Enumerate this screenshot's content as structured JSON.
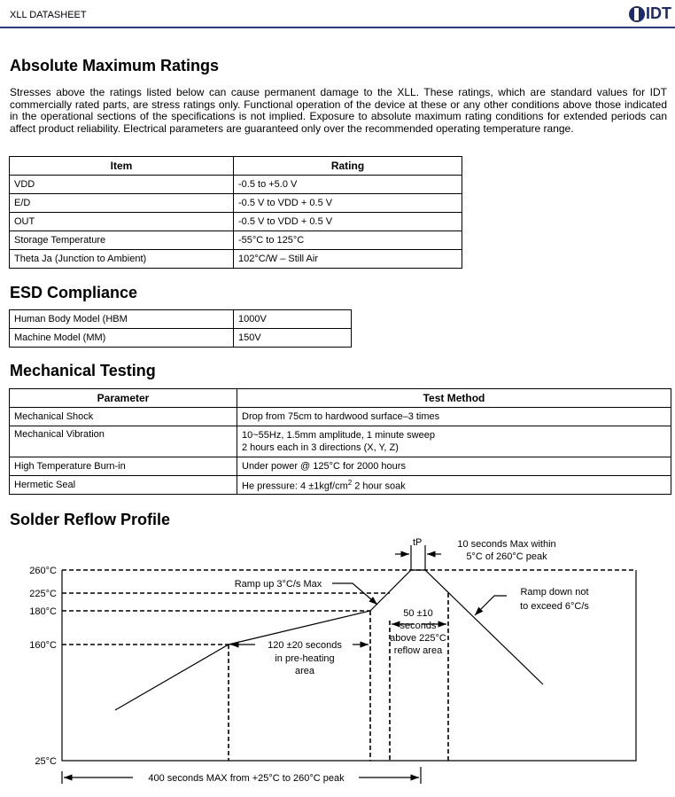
{
  "header": {
    "title": "XLL DATASHEET",
    "logo": "IDT"
  },
  "abs_max": {
    "title": "Absolute Maximum Ratings",
    "intro": "Stresses above the ratings listed below can cause permanent damage to the XLL. These ratings, which are standard values for IDT commercially rated parts, are stress ratings only. Functional operation of the device at these or any other conditions above those indicated in the operational sections of the specifications is not implied. Exposure to absolute maximum rating conditions for extended periods can affect product reliability. Electrical parameters are guaranteed only over the recommended operating temperature range.",
    "headers": [
      "Item",
      "Rating"
    ],
    "rows": [
      [
        "VDD",
        "-0.5 to +5.0 V"
      ],
      [
        "E/D",
        "-0.5 V to VDD + 0.5 V"
      ],
      [
        "OUT",
        "-0.5 V to VDD + 0.5 V"
      ],
      [
        "Storage Temperature",
        "-55°C to 125°C"
      ],
      [
        "Theta Ja (Junction to Ambient)",
        "102°C/W – Still Air"
      ]
    ]
  },
  "esd": {
    "title": "ESD Compliance",
    "rows": [
      [
        "Human Body Model (HBM",
        "1000V"
      ],
      [
        "Machine Model (MM)",
        "150V"
      ]
    ]
  },
  "mech": {
    "title": "Mechanical Testing",
    "headers": [
      "Parameter",
      "Test Method"
    ],
    "rows": [
      [
        "Mechanical Shock",
        "Drop from 75cm to hardwood surface–3 times"
      ],
      [
        "Mechanical Vibration",
        "10~55Hz, 1.5mm amplitude, 1 minute sweep",
        "2 hours each in 3 directions (X, Y, Z)"
      ],
      [
        "High Temperature Burn-in",
        "Under power @ 125°C for 2000 hours"
      ],
      [
        "Hermetic Seal",
        "He pressure: 4 ±1kgf/cm",
        "2",
        " 2 hour soak"
      ]
    ]
  },
  "reflow": {
    "title": "Solder Reflow Profile",
    "temps": [
      "260°C",
      "225°C",
      "180°C",
      "160°C",
      "25°C"
    ],
    "tp": "tP",
    "tp_note": [
      "10 seconds Max within",
      "5°C of 260°C peak"
    ],
    "ramp_up": "Ramp up 3°C/s Max",
    "ramp_down": [
      "Ramp down not",
      "to exceed 6°C/s"
    ],
    "reflow_area": [
      "50 ±10",
      "seconds",
      "above 225°C",
      "reflow area"
    ],
    "preheat": [
      "120 ±20 seconds",
      "in pre-heating",
      "area"
    ],
    "total": "400 seconds MAX from +25°C to 260°C peak"
  }
}
